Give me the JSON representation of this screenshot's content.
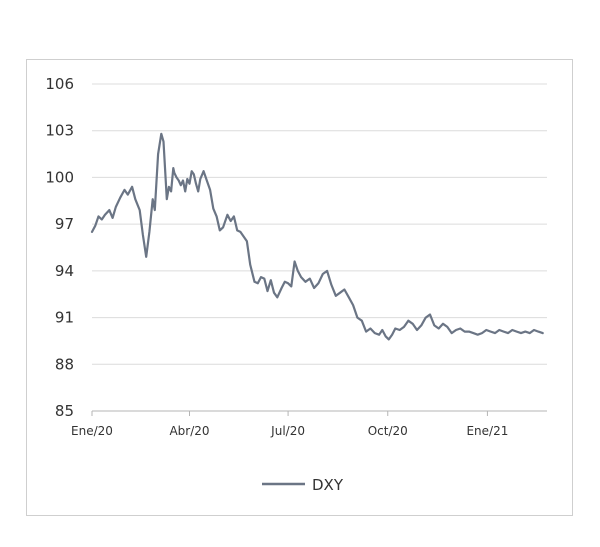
{
  "chart_data": {
    "type": "line",
    "title": "",
    "xlabel": "",
    "ylabel": "",
    "ylim": [
      85,
      106
    ],
    "yticks": [
      "106",
      "103",
      "100",
      "97",
      "94",
      "91",
      "88",
      "85"
    ],
    "yvalues": [
      106,
      103,
      100,
      97,
      94,
      91,
      88,
      85
    ],
    "xtick_labels": [
      "Ene/20",
      "Abr/20",
      "Jul/20",
      "Oct/20",
      "Ene/21"
    ],
    "xtick_positions": [
      0,
      90,
      181,
      273,
      365
    ],
    "xlim": [
      0,
      420
    ],
    "grid": "horizontal",
    "legend_position": "bottom-center",
    "series": [
      {
        "name": "DXY",
        "color": "#6b7585",
        "x": [
          0,
          3,
          6,
          9,
          12,
          16,
          19,
          22,
          26,
          30,
          33,
          37,
          40,
          44,
          47,
          50,
          53,
          56,
          58,
          61,
          64,
          66,
          69,
          71,
          73,
          75,
          76,
          78,
          80,
          82,
          84,
          86,
          88,
          90,
          92,
          94,
          96,
          98,
          100,
          103,
          106,
          109,
          112,
          115,
          118,
          121,
          125,
          128,
          131,
          134,
          137,
          140,
          143,
          146,
          150,
          153,
          156,
          159,
          162,
          165,
          168,
          171,
          175,
          178,
          181,
          184,
          187,
          190,
          193,
          197,
          201,
          205,
          209,
          213,
          217,
          221,
          225,
          229,
          233,
          237,
          241,
          245,
          249,
          253,
          257,
          261,
          265,
          268,
          271,
          274,
          277,
          280,
          284,
          288,
          292,
          296,
          300,
          304,
          308,
          312,
          316,
          320,
          324,
          328,
          332,
          336,
          340,
          344,
          348,
          352,
          356,
          360,
          364,
          368,
          372,
          376,
          380,
          384,
          388,
          392,
          396,
          400,
          404,
          408,
          412,
          416
        ],
        "values": [
          96.5,
          96.9,
          97.5,
          97.3,
          97.6,
          97.9,
          97.4,
          98.1,
          98.7,
          99.2,
          98.9,
          99.4,
          98.6,
          97.9,
          96.3,
          94.9,
          96.5,
          98.6,
          97.9,
          101.5,
          102.8,
          102.3,
          98.6,
          99.4,
          99.1,
          100.6,
          100.3,
          100.0,
          99.8,
          99.5,
          99.8,
          99.1,
          99.9,
          99.6,
          100.4,
          100.2,
          99.6,
          99.1,
          99.9,
          100.4,
          99.8,
          99.2,
          98.0,
          97.5,
          96.6,
          96.8,
          97.6,
          97.2,
          97.5,
          96.6,
          96.5,
          96.2,
          95.9,
          94.4,
          93.3,
          93.2,
          93.6,
          93.5,
          92.7,
          93.4,
          92.6,
          92.3,
          92.9,
          93.3,
          93.2,
          93.0,
          94.6,
          94.0,
          93.6,
          93.3,
          93.5,
          92.9,
          93.2,
          93.8,
          94.0,
          93.1,
          92.4,
          92.6,
          92.8,
          92.3,
          91.8,
          91.0,
          90.8,
          90.1,
          90.3,
          90.0,
          89.9,
          90.2,
          89.8,
          89.6,
          89.9,
          90.3,
          90.2,
          90.4,
          90.8,
          90.6,
          90.2,
          90.5,
          91.0,
          91.2,
          90.5,
          90.3,
          90.6,
          90.4,
          90.0,
          90.2,
          90.3,
          90.1,
          90.1,
          90.0,
          89.9,
          90.0,
          90.2,
          90.1,
          90.0,
          90.2,
          90.1,
          90.0,
          90.2,
          90.1,
          90.0,
          90.1,
          90.0,
          90.2,
          90.1,
          90.0
        ]
      }
    ]
  }
}
